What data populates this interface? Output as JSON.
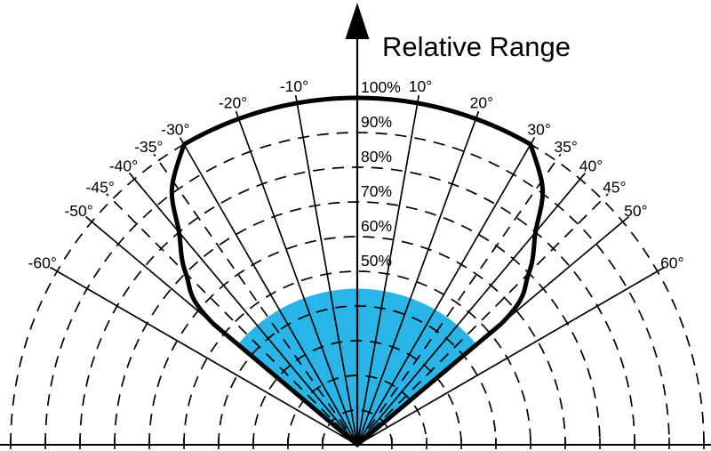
{
  "chart_data": {
    "type": "line",
    "polar": true,
    "title": "Relative Range",
    "axis": {
      "label": "Relative Range",
      "arrow": "up",
      "position_deg": 0
    },
    "angular_range_deg": [
      -90,
      90
    ],
    "radial_unit": "percent of maximum range",
    "ring_grid": {
      "style": "dashed",
      "min_pct": 10,
      "max_pct": 100,
      "step_pct": 10
    },
    "ring_labels": [
      {
        "pct": 100,
        "text": "100%"
      },
      {
        "pct": 90,
        "text": "90%"
      },
      {
        "pct": 80,
        "text": "80%"
      },
      {
        "pct": 70,
        "text": "70%"
      },
      {
        "pct": 60,
        "text": "60%"
      },
      {
        "pct": 50,
        "text": "50%"
      }
    ],
    "angle_labels": [
      {
        "deg": -60,
        "text": "-60°",
        "line": "solid"
      },
      {
        "deg": -50,
        "text": "-50°",
        "line": "solid"
      },
      {
        "deg": -45,
        "text": "-45°",
        "line": "dashed"
      },
      {
        "deg": -40,
        "text": "-40°",
        "line": "solid"
      },
      {
        "deg": -35,
        "text": "-35°",
        "line": "dashed"
      },
      {
        "deg": -30,
        "text": "-30°",
        "line": "solid"
      },
      {
        "deg": -20,
        "text": "-20°",
        "line": "solid"
      },
      {
        "deg": -10,
        "text": "-10°",
        "line": "solid"
      },
      {
        "deg": 10,
        "text": "10°",
        "line": "solid"
      },
      {
        "deg": 20,
        "text": "20°",
        "line": "solid"
      },
      {
        "deg": 30,
        "text": "30°",
        "line": "solid"
      },
      {
        "deg": 35,
        "text": "35°",
        "line": "dashed"
      },
      {
        "deg": 40,
        "text": "40°",
        "line": "solid"
      },
      {
        "deg": 45,
        "text": "45°",
        "line": "dashed"
      },
      {
        "deg": 50,
        "text": "50°",
        "line": "solid"
      },
      {
        "deg": 60,
        "text": "60°",
        "line": "solid"
      }
    ],
    "envelope_series": {
      "name": "relative-range-envelope",
      "stroke_px": 5,
      "points_deg_pct": [
        [
          -50,
          0
        ],
        [
          -50,
          54
        ],
        [
          -45,
          70
        ],
        [
          -40,
          80
        ],
        [
          -36,
          91
        ],
        [
          -30,
          100
        ],
        [
          -20,
          100
        ],
        [
          -10,
          100
        ],
        [
          0,
          100
        ],
        [
          10,
          100
        ],
        [
          20,
          100
        ],
        [
          30,
          100
        ],
        [
          36,
          91
        ],
        [
          40,
          80
        ],
        [
          45,
          70
        ],
        [
          50,
          54
        ],
        [
          50,
          0
        ]
      ]
    },
    "beam_sector": {
      "name": "highlighted-beam-sector",
      "color": "#29B5E8",
      "span_deg": [
        -50,
        50
      ],
      "radius_pct": 45
    },
    "colors": {
      "lines": "#000000",
      "background": "#ffffff",
      "beam": "#29B5E8"
    }
  }
}
